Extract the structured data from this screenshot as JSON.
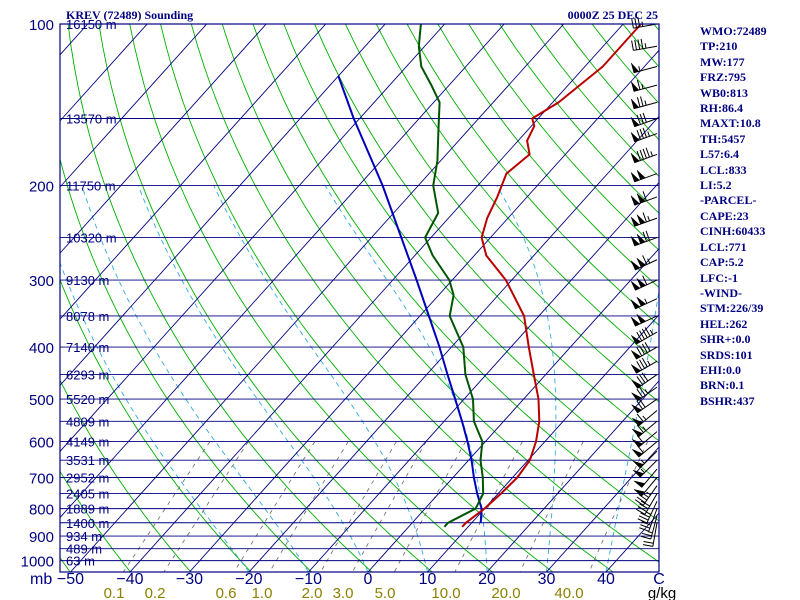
{
  "header": {
    "title": "KREV (72489) Sounding",
    "timestamp": "0000Z 25 DEC 25"
  },
  "indices": [
    "WMO:72489",
    "TP:210",
    "MW:177",
    "FRZ:795",
    "WB0:813",
    "RH:86.4",
    "MAXT:10.8",
    "TH:5457",
    "L57:6.4",
    "LCL:833",
    "LI:5.2",
    "-PARCEL-",
    "CAPE:23",
    "CINH:60433",
    "LCL:771",
    "CAP:5.2",
    "LFC:-1",
    "-WIND-",
    "STM:226/39",
    "HEL:262",
    "SHR+:0.0",
    "SRDS:101",
    "EHI:0.0",
    "BRN:0.1",
    "BSHR:437"
  ],
  "colors": {
    "frame": "#000080",
    "isobar": "#000080",
    "isotherm": "#000080",
    "dry_adiabat": "#00b000",
    "moist_adiabat": "#33aadd",
    "mixing_ratio": "#666666",
    "temperature": "#bb0000",
    "dewpoint": "#005500",
    "parcel": "#0000bb",
    "wind_barb": "#000000",
    "mixing_label": "#8b8000"
  },
  "chart_data": {
    "type": "skew-t",
    "pressure_unit": "mb",
    "pressure_ticks": [
      {
        "p": 100,
        "label": "100",
        "height": "16150 m"
      },
      {
        "p": 150,
        "label": "",
        "height": "13570 m"
      },
      {
        "p": 200,
        "label": "200",
        "height": "11750 m"
      },
      {
        "p": 250,
        "label": "",
        "height": "10320 m"
      },
      {
        "p": 300,
        "label": "300",
        "height": "9130 m"
      },
      {
        "p": 350,
        "label": "",
        "height": "8078 m"
      },
      {
        "p": 400,
        "label": "400",
        "height": "7140 m"
      },
      {
        "p": 450,
        "label": "",
        "height": "6293 m"
      },
      {
        "p": 500,
        "label": "500",
        "height": "5520 m"
      },
      {
        "p": 550,
        "label": "",
        "height": "4809 m"
      },
      {
        "p": 600,
        "label": "600",
        "height": "4149 m"
      },
      {
        "p": 650,
        "label": "",
        "height": "3531 m"
      },
      {
        "p": 700,
        "label": "700",
        "height": "2952 m"
      },
      {
        "p": 750,
        "label": "",
        "height": "2405 m"
      },
      {
        "p": 800,
        "label": "800",
        "height": "1889 m"
      },
      {
        "p": 850,
        "label": "",
        "height": "1400 m"
      },
      {
        "p": 900,
        "label": "900",
        "height": "934 m"
      },
      {
        "p": 950,
        "label": "",
        "height": "489 m"
      },
      {
        "p": 1000,
        "label": "1000",
        "height": "63 m"
      }
    ],
    "temperature_ticks": [
      -50,
      -40,
      -30,
      -20,
      -10,
      0,
      10,
      20,
      30,
      40
    ],
    "temperature_unit": "C",
    "mixing_ratio_labels": [
      "0.1",
      "0.2",
      "0.6",
      "1.0",
      "2.0",
      "3.0",
      "5.0",
      "10.0",
      "20.0",
      "40.0"
    ],
    "mixing_ratio_unit": "g/kg",
    "mixing_ratio_values": [
      0.1,
      0.2,
      0.6,
      1.0,
      2.0,
      3.0,
      5.0,
      10.0,
      20.0,
      40.0
    ],
    "dry_adiabats_theta_K": [
      200,
      210,
      220,
      230,
      240,
      250,
      260,
      270,
      280,
      290,
      300,
      310,
      320,
      330,
      340,
      350,
      360,
      370,
      380,
      390,
      400,
      410,
      420,
      430,
      440,
      450,
      460,
      470,
      480,
      490,
      500,
      510,
      520
    ],
    "moist_adiabats_base_C": [
      -20,
      -10,
      0,
      10,
      20,
      30,
      40
    ],
    "temperature": [
      {
        "p": 865,
        "t": 9.0
      },
      {
        "p": 850,
        "t": 9.0
      },
      {
        "p": 800,
        "t": 10.0
      },
      {
        "p": 750,
        "t": 10.5
      },
      {
        "p": 700,
        "t": 10.8
      },
      {
        "p": 650,
        "t": 10.3
      },
      {
        "p": 600,
        "t": 8.5
      },
      {
        "p": 550,
        "t": 6.0
      },
      {
        "p": 500,
        "t": 2.5
      },
      {
        "p": 450,
        "t": -2.0
      },
      {
        "p": 400,
        "t": -7.0
      },
      {
        "p": 350,
        "t": -12.5
      },
      {
        "p": 300,
        "t": -21.0
      },
      {
        "p": 270,
        "t": -28.0
      },
      {
        "p": 250,
        "t": -31.5
      },
      {
        "p": 230,
        "t": -33.5
      },
      {
        "p": 210,
        "t": -35.0
      },
      {
        "p": 190,
        "t": -37.0
      },
      {
        "p": 175,
        "t": -36.0
      },
      {
        "p": 165,
        "t": -38.5
      },
      {
        "p": 155,
        "t": -39.5
      },
      {
        "p": 150,
        "t": -41.0
      },
      {
        "p": 140,
        "t": -39.0
      },
      {
        "p": 120,
        "t": -37.0
      },
      {
        "p": 100,
        "t": -37.0
      }
    ],
    "dewpoint": [
      {
        "p": 865,
        "t": 6.0
      },
      {
        "p": 850,
        "t": 6.0
      },
      {
        "p": 800,
        "t": 8.5
      },
      {
        "p": 750,
        "t": 7.5
      },
      {
        "p": 700,
        "t": 5.0
      },
      {
        "p": 650,
        "t": 2.0
      },
      {
        "p": 600,
        "t": -0.5
      },
      {
        "p": 550,
        "t": -5.0
      },
      {
        "p": 500,
        "t": -8.5
      },
      {
        "p": 450,
        "t": -13.5
      },
      {
        "p": 400,
        "t": -18.0
      },
      {
        "p": 350,
        "t": -25.0
      },
      {
        "p": 320,
        "t": -27.5
      },
      {
        "p": 300,
        "t": -30.5
      },
      {
        "p": 270,
        "t": -37.0
      },
      {
        "p": 250,
        "t": -41.0
      },
      {
        "p": 225,
        "t": -42.5
      },
      {
        "p": 200,
        "t": -47.5
      },
      {
        "p": 180,
        "t": -50.5
      },
      {
        "p": 160,
        "t": -54.5
      },
      {
        "p": 140,
        "t": -59.0
      },
      {
        "p": 130,
        "t": -63.0
      },
      {
        "p": 120,
        "t": -67.5
      },
      {
        "p": 110,
        "t": -71.0
      },
      {
        "p": 100,
        "t": -74.0
      }
    ],
    "parcel": [
      {
        "p": 850,
        "t": 11.5
      },
      {
        "p": 800,
        "t": 9.5
      },
      {
        "p": 750,
        "t": 6.5
      },
      {
        "p": 700,
        "t": 3.5
      },
      {
        "p": 650,
        "t": 0.5
      },
      {
        "p": 600,
        "t": -3.0
      },
      {
        "p": 550,
        "t": -7.0
      },
      {
        "p": 500,
        "t": -11.5
      },
      {
        "p": 450,
        "t": -16.5
      },
      {
        "p": 400,
        "t": -22.0
      },
      {
        "p": 350,
        "t": -28.5
      },
      {
        "p": 300,
        "t": -36.0
      },
      {
        "p": 250,
        "t": -45.0
      },
      {
        "p": 200,
        "t": -56.0
      },
      {
        "p": 150,
        "t": -71.0
      },
      {
        "p": 125,
        "t": -80.0
      }
    ],
    "wind_barbs": [
      {
        "p": 850,
        "dir": 190,
        "spd": 20
      },
      {
        "p": 825,
        "dir": 195,
        "spd": 25
      },
      {
        "p": 800,
        "dir": 200,
        "spd": 30
      },
      {
        "p": 775,
        "dir": 205,
        "spd": 35
      },
      {
        "p": 750,
        "dir": 210,
        "spd": 40
      },
      {
        "p": 725,
        "dir": 215,
        "spd": 45
      },
      {
        "p": 700,
        "dir": 220,
        "spd": 50
      },
      {
        "p": 675,
        "dir": 220,
        "spd": 50
      },
      {
        "p": 650,
        "dir": 225,
        "spd": 55
      },
      {
        "p": 625,
        "dir": 225,
        "spd": 55
      },
      {
        "p": 600,
        "dir": 230,
        "spd": 60
      },
      {
        "p": 575,
        "dir": 230,
        "spd": 60
      },
      {
        "p": 550,
        "dir": 230,
        "spd": 65
      },
      {
        "p": 525,
        "dir": 230,
        "spd": 65
      },
      {
        "p": 500,
        "dir": 235,
        "spd": 70
      },
      {
        "p": 475,
        "dir": 235,
        "spd": 75
      },
      {
        "p": 450,
        "dir": 235,
        "spd": 80
      },
      {
        "p": 425,
        "dir": 240,
        "spd": 85
      },
      {
        "p": 400,
        "dir": 240,
        "spd": 90
      },
      {
        "p": 375,
        "dir": 240,
        "spd": 95
      },
      {
        "p": 350,
        "dir": 245,
        "spd": 100
      },
      {
        "p": 325,
        "dir": 245,
        "spd": 105
      },
      {
        "p": 300,
        "dir": 245,
        "spd": 110
      },
      {
        "p": 275,
        "dir": 245,
        "spd": 115
      },
      {
        "p": 250,
        "dir": 250,
        "spd": 120
      },
      {
        "p": 230,
        "dir": 250,
        "spd": 115
      },
      {
        "p": 210,
        "dir": 250,
        "spd": 110
      },
      {
        "p": 190,
        "dir": 250,
        "spd": 100
      },
      {
        "p": 175,
        "dir": 250,
        "spd": 95
      },
      {
        "p": 160,
        "dir": 250,
        "spd": 85
      },
      {
        "p": 150,
        "dir": 250,
        "spd": 80
      },
      {
        "p": 140,
        "dir": 255,
        "spd": 75
      },
      {
        "p": 130,
        "dir": 255,
        "spd": 65
      },
      {
        "p": 120,
        "dir": 255,
        "spd": 55
      },
      {
        "p": 110,
        "dir": 260,
        "spd": 45
      },
      {
        "p": 100,
        "dir": 260,
        "spd": 35
      }
    ]
  }
}
